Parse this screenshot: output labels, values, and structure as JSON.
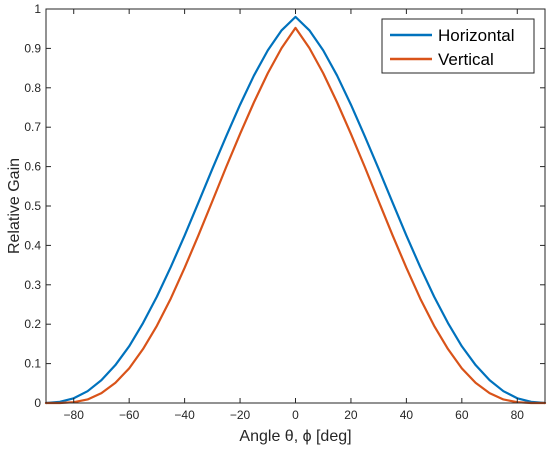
{
  "chart_data": {
    "type": "line",
    "title": "",
    "xlabel": "Angle θ, ϕ [deg]",
    "ylabel": "Relative Gain",
    "xlim": [
      -90,
      90
    ],
    "ylim": [
      0,
      1
    ],
    "xticks": [
      -80,
      -60,
      -40,
      -20,
      0,
      20,
      40,
      60,
      80
    ],
    "yticks": [
      0,
      0.1,
      0.2,
      0.3,
      0.4,
      0.5,
      0.6,
      0.7,
      0.8,
      0.9,
      1
    ],
    "grid": false,
    "legend_position": "top-right",
    "x": [
      -90,
      -85,
      -80,
      -75,
      -70,
      -65,
      -60,
      -55,
      -50,
      -45,
      -40,
      -35,
      -30,
      -25,
      -20,
      -15,
      -10,
      -5,
      0,
      5,
      10,
      15,
      20,
      25,
      30,
      35,
      40,
      45,
      50,
      55,
      60,
      65,
      70,
      75,
      80,
      85,
      90
    ],
    "series": [
      {
        "name": "Horizontal",
        "color": "#0072BD",
        "values": [
          0.0,
          0.003,
          0.012,
          0.03,
          0.058,
          0.096,
          0.144,
          0.203,
          0.27,
          0.345,
          0.425,
          0.509,
          0.594,
          0.677,
          0.757,
          0.831,
          0.895,
          0.946,
          0.98,
          0.946,
          0.895,
          0.831,
          0.757,
          0.677,
          0.594,
          0.509,
          0.425,
          0.345,
          0.27,
          0.203,
          0.144,
          0.096,
          0.058,
          0.03,
          0.012,
          0.003,
          0.0
        ]
      },
      {
        "name": "Vertical",
        "color": "#D95319",
        "values": [
          0.0,
          0.0,
          0.002,
          0.009,
          0.025,
          0.051,
          0.088,
          0.137,
          0.196,
          0.265,
          0.343,
          0.426,
          0.512,
          0.599,
          0.683,
          0.763,
          0.837,
          0.901,
          0.952,
          0.901,
          0.837,
          0.763,
          0.683,
          0.599,
          0.512,
          0.426,
          0.343,
          0.265,
          0.196,
          0.137,
          0.088,
          0.051,
          0.025,
          0.009,
          0.002,
          0.0,
          0.0
        ]
      }
    ]
  },
  "colors": {
    "axis": "#262626",
    "background": "#ffffff"
  }
}
